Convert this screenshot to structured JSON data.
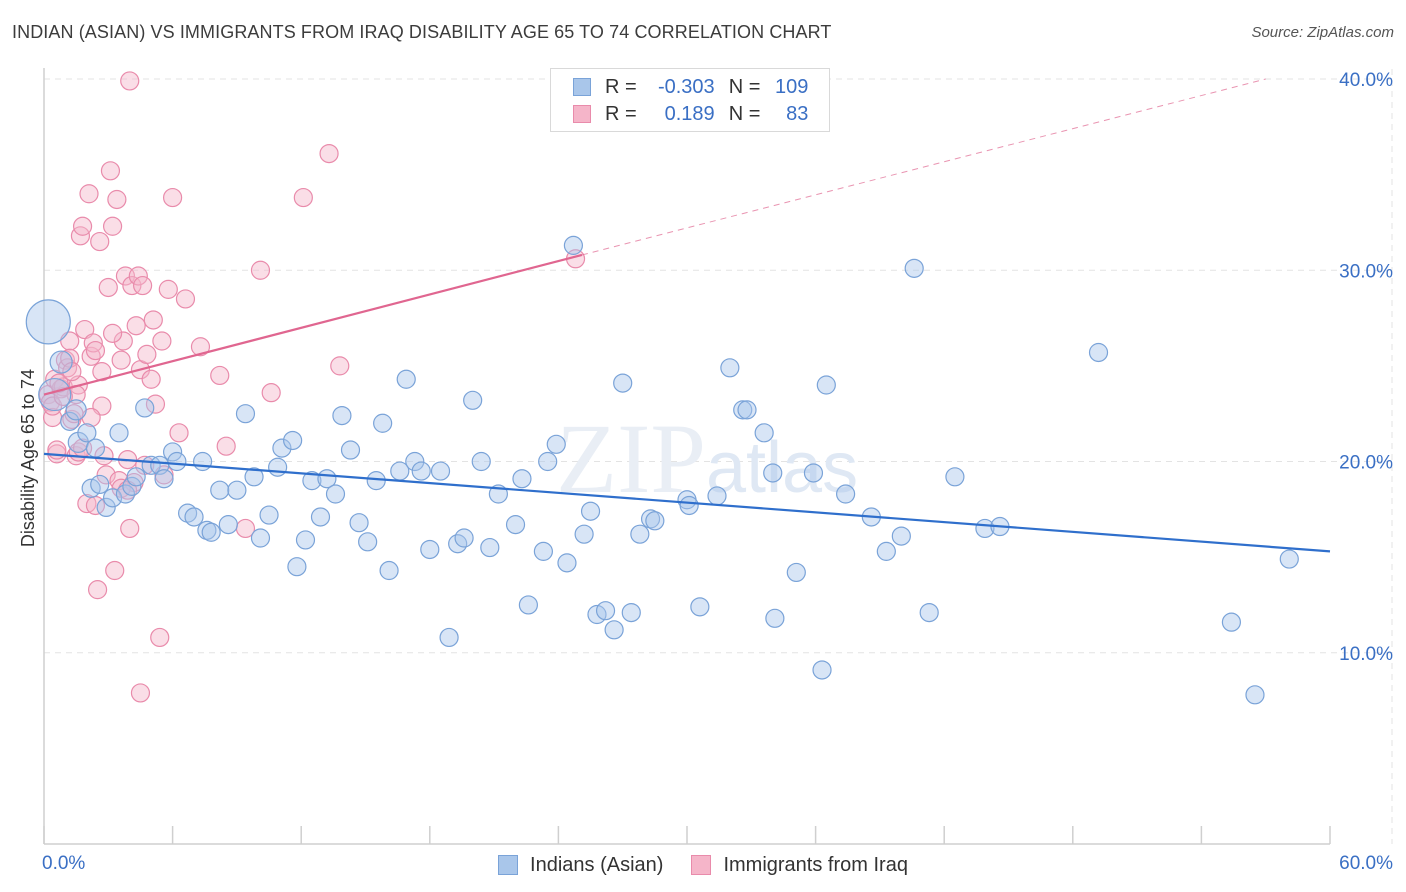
{
  "title": "INDIAN (ASIAN) VS IMMIGRANTS FROM IRAQ DISABILITY AGE 65 TO 74 CORRELATION CHART",
  "source": "Source: ZipAtlas.com",
  "watermark": "ZIPatlas",
  "colors": {
    "blue_fill": "#a9c6ea",
    "blue_stroke": "#7aa3d8",
    "blue_line": "#2f6fcc",
    "pink_fill": "#f5b5c9",
    "pink_stroke": "#e98bab",
    "pink_line": "#e06690",
    "axis_text": "#3a6fc4",
    "grid": "#e3e3e3"
  },
  "legend": {
    "rows": [
      {
        "label": "R =",
        "r": "-0.303",
        "n_label": "N =",
        "n": "109",
        "series": "blue"
      },
      {
        "label": "R =",
        "r": "0.189",
        "n_label": "N =",
        "n": "83",
        "series": "pink"
      }
    ]
  },
  "bottom_legend": {
    "blue_label": "Indians (Asian)",
    "pink_label": "Immigrants from Iraq"
  },
  "chart_data": {
    "type": "scatter",
    "title": "INDIAN (ASIAN) VS IMMIGRANTS FROM IRAQ DISABILITY AGE 65 TO 74 CORRELATION CHART",
    "xlabel": "",
    "ylabel": "Disability Age 65 to 74",
    "xlim": [
      0,
      60
    ],
    "ylim": [
      0,
      40
    ],
    "x_tick_labels": [
      "0.0%",
      "60.0%"
    ],
    "y_ticks": [
      10,
      20,
      30,
      40
    ],
    "y_tick_labels": [
      "10.0%",
      "20.0%",
      "30.0%",
      "40.0%"
    ],
    "series": [
      {
        "name": "Indians (Asian)",
        "r": -0.303,
        "n": 109,
        "trend": {
          "x0": 0,
          "y0": 20.4,
          "x1": 60,
          "y1": 15.3
        },
        "points": [
          [
            0.2,
            27.3,
            22
          ],
          [
            0.5,
            23.5,
            16
          ],
          [
            0.8,
            25.2,
            11
          ],
          [
            1.2,
            22.1,
            9
          ],
          [
            1.5,
            22.7,
            10
          ],
          [
            1.6,
            21.0,
            10
          ],
          [
            2.0,
            21.5,
            9
          ],
          [
            2.2,
            18.6,
            9
          ],
          [
            2.4,
            20.7,
            9
          ],
          [
            2.6,
            18.8,
            9
          ],
          [
            2.9,
            17.6,
            9
          ],
          [
            3.2,
            18.1,
            9
          ],
          [
            3.5,
            21.5,
            9
          ],
          [
            3.8,
            18.3,
            9
          ],
          [
            4.1,
            18.7,
            9
          ],
          [
            4.3,
            19.2,
            9
          ],
          [
            4.7,
            22.8,
            9
          ],
          [
            5.0,
            19.8,
            9
          ],
          [
            5.4,
            19.8,
            9
          ],
          [
            5.6,
            19.1,
            9
          ],
          [
            6.0,
            20.5,
            9
          ],
          [
            6.2,
            20.0,
            9
          ],
          [
            6.7,
            17.3,
            9
          ],
          [
            7.0,
            17.1,
            9
          ],
          [
            7.4,
            20.0,
            9
          ],
          [
            7.6,
            16.4,
            9
          ],
          [
            7.8,
            16.3,
            9
          ],
          [
            8.2,
            18.5,
            9
          ],
          [
            8.6,
            16.7,
            9
          ],
          [
            9.0,
            18.5,
            9
          ],
          [
            9.4,
            22.5,
            9
          ],
          [
            9.8,
            19.2,
            9
          ],
          [
            10.1,
            16.0,
            9
          ],
          [
            10.5,
            17.2,
            9
          ],
          [
            10.9,
            19.7,
            9
          ],
          [
            11.1,
            20.7,
            9
          ],
          [
            11.6,
            21.1,
            9
          ],
          [
            11.8,
            14.5,
            9
          ],
          [
            12.2,
            15.9,
            9
          ],
          [
            12.5,
            19.0,
            9
          ],
          [
            12.9,
            17.1,
            9
          ],
          [
            13.2,
            19.1,
            9
          ],
          [
            13.6,
            18.3,
            9
          ],
          [
            13.9,
            22.4,
            9
          ],
          [
            14.3,
            20.6,
            9
          ],
          [
            14.7,
            16.8,
            9
          ],
          [
            15.1,
            15.8,
            9
          ],
          [
            15.5,
            19.0,
            9
          ],
          [
            15.8,
            22.0,
            9
          ],
          [
            16.1,
            14.3,
            9
          ],
          [
            16.6,
            19.5,
            9
          ],
          [
            16.9,
            24.3,
            9
          ],
          [
            17.3,
            20.0,
            9
          ],
          [
            17.6,
            19.5,
            9
          ],
          [
            18.0,
            15.4,
            9
          ],
          [
            18.5,
            19.5,
            9
          ],
          [
            18.9,
            10.8,
            9
          ],
          [
            19.3,
            15.7,
            9
          ],
          [
            19.6,
            16.0,
            9
          ],
          [
            20.0,
            23.2,
            9
          ],
          [
            20.4,
            20.0,
            9
          ],
          [
            20.8,
            15.5,
            9
          ],
          [
            21.2,
            18.3,
            9
          ],
          [
            22.0,
            16.7,
            9
          ],
          [
            22.3,
            19.1,
            9
          ],
          [
            22.6,
            12.5,
            9
          ],
          [
            23.3,
            15.3,
            9
          ],
          [
            23.5,
            20.0,
            9
          ],
          [
            23.9,
            20.9,
            9
          ],
          [
            24.4,
            14.7,
            9
          ],
          [
            24.7,
            31.3,
            9
          ],
          [
            25.2,
            16.2,
            9
          ],
          [
            25.5,
            17.4,
            9
          ],
          [
            25.8,
            12.0,
            9
          ],
          [
            26.2,
            12.2,
            9
          ],
          [
            26.6,
            11.2,
            9
          ],
          [
            27.0,
            24.1,
            9
          ],
          [
            27.4,
            12.1,
            9
          ],
          [
            27.8,
            16.2,
            9
          ],
          [
            28.3,
            17.0,
            9
          ],
          [
            28.5,
            16.9,
            9
          ],
          [
            30.0,
            18.0,
            9
          ],
          [
            30.1,
            17.7,
            9
          ],
          [
            30.6,
            12.4,
            9
          ],
          [
            31.4,
            18.2,
            9
          ],
          [
            32.0,
            24.9,
            9
          ],
          [
            32.6,
            22.7,
            9
          ],
          [
            32.8,
            22.7,
            9
          ],
          [
            33.6,
            21.5,
            9
          ],
          [
            34.0,
            19.4,
            9
          ],
          [
            34.1,
            11.8,
            9
          ],
          [
            35.1,
            14.2,
            9
          ],
          [
            35.9,
            19.4,
            9
          ],
          [
            36.3,
            9.1,
            9
          ],
          [
            36.5,
            24.0,
            9
          ],
          [
            37.4,
            18.3,
            9
          ],
          [
            38.6,
            17.1,
            9
          ],
          [
            39.3,
            15.3,
            9
          ],
          [
            40.0,
            16.1,
            9
          ],
          [
            40.6,
            30.1,
            9
          ],
          [
            41.3,
            12.1,
            9
          ],
          [
            42.5,
            19.2,
            9
          ],
          [
            43.9,
            16.5,
            9
          ],
          [
            44.6,
            16.6,
            9
          ],
          [
            49.2,
            25.7,
            9
          ],
          [
            55.4,
            11.6,
            9
          ],
          [
            56.5,
            7.8,
            9
          ],
          [
            58.1,
            14.9,
            9
          ]
        ]
      },
      {
        "name": "Immigrants from Iraq",
        "r": 0.189,
        "n": 83,
        "trend": {
          "x0": 0,
          "y0": 23.5,
          "x1": 25.1,
          "y1": 30.8,
          "dash_x1": 57,
          "dash_y1": 40.0
        },
        "points": [
          [
            0.2,
            23.5,
            9
          ],
          [
            0.3,
            23.1,
            9
          ],
          [
            0.4,
            22.3,
            9
          ],
          [
            0.5,
            24.3,
            9
          ],
          [
            0.6,
            20.4,
            9
          ],
          [
            0.8,
            23.8,
            9
          ],
          [
            0.9,
            23.9,
            9
          ],
          [
            1.0,
            25.3,
            9
          ],
          [
            1.1,
            24.9,
            9
          ],
          [
            1.2,
            26.3,
            9
          ],
          [
            1.3,
            22.2,
            9
          ],
          [
            1.4,
            22.5,
            9
          ],
          [
            1.5,
            20.3,
            9
          ],
          [
            1.6,
            20.5,
            9
          ],
          [
            1.7,
            31.8,
            9
          ],
          [
            1.8,
            32.3,
            9
          ],
          [
            1.9,
            26.9,
            9
          ],
          [
            2.0,
            17.8,
            9
          ],
          [
            2.1,
            34.0,
            9
          ],
          [
            2.2,
            25.5,
            9
          ],
          [
            2.3,
            26.2,
            9
          ],
          [
            2.4,
            17.7,
            9
          ],
          [
            2.5,
            13.3,
            9
          ],
          [
            2.6,
            31.5,
            9
          ],
          [
            2.7,
            22.9,
            9
          ],
          [
            2.8,
            20.3,
            9
          ],
          [
            2.9,
            19.3,
            9
          ],
          [
            3.0,
            29.1,
            9
          ],
          [
            3.1,
            35.2,
            9
          ],
          [
            3.2,
            32.3,
            9
          ],
          [
            3.3,
            14.3,
            9
          ],
          [
            3.4,
            33.7,
            9
          ],
          [
            3.5,
            19.0,
            9
          ],
          [
            3.6,
            25.3,
            9
          ],
          [
            3.7,
            26.3,
            9
          ],
          [
            3.8,
            29.7,
            9
          ],
          [
            3.9,
            20.1,
            9
          ],
          [
            4.0,
            16.5,
            9
          ],
          [
            4.1,
            29.2,
            9
          ],
          [
            4.2,
            18.9,
            9
          ],
          [
            4.3,
            27.1,
            9
          ],
          [
            4.4,
            29.7,
            9
          ],
          [
            4.5,
            24.8,
            9
          ],
          [
            4.6,
            29.2,
            9
          ],
          [
            4.7,
            19.8,
            9
          ],
          [
            4.8,
            25.6,
            9
          ],
          [
            5.0,
            24.3,
            9
          ],
          [
            5.1,
            27.4,
            9
          ],
          [
            5.2,
            23.0,
            9
          ],
          [
            5.4,
            10.8,
            9
          ],
          [
            5.6,
            19.3,
            9
          ],
          [
            5.8,
            29.0,
            9
          ],
          [
            6.0,
            33.8,
            9
          ],
          [
            4.5,
            7.9,
            9
          ],
          [
            6.6,
            28.5,
            9
          ],
          [
            7.3,
            26.0,
            9
          ],
          [
            8.5,
            20.8,
            9
          ],
          [
            8.2,
            24.5,
            9
          ],
          [
            9.4,
            16.5,
            9
          ],
          [
            10.1,
            30.0,
            9
          ],
          [
            10.6,
            23.6,
            9
          ],
          [
            12.1,
            33.8,
            9
          ],
          [
            13.3,
            36.1,
            9
          ],
          [
            13.8,
            25.0,
            9
          ],
          [
            24.8,
            30.6,
            9
          ],
          [
            4.0,
            39.9,
            9
          ],
          [
            1.6,
            24.0,
            9
          ],
          [
            1.2,
            25.4,
            9
          ],
          [
            0.6,
            20.6,
            9
          ],
          [
            1.5,
            23.5,
            9
          ],
          [
            2.2,
            22.3,
            9
          ],
          [
            3.6,
            18.6,
            9
          ],
          [
            0.4,
            22.9,
            9
          ],
          [
            0.9,
            23.4,
            9
          ],
          [
            1.8,
            20.7,
            9
          ],
          [
            2.7,
            24.7,
            9
          ],
          [
            3.2,
            26.7,
            9
          ],
          [
            0.7,
            24.1,
            9
          ],
          [
            1.3,
            24.7,
            9
          ],
          [
            2.4,
            25.8,
            9
          ],
          [
            3.9,
            18.5,
            9
          ],
          [
            5.5,
            26.3,
            9
          ],
          [
            6.3,
            21.5,
            9
          ]
        ]
      }
    ]
  }
}
